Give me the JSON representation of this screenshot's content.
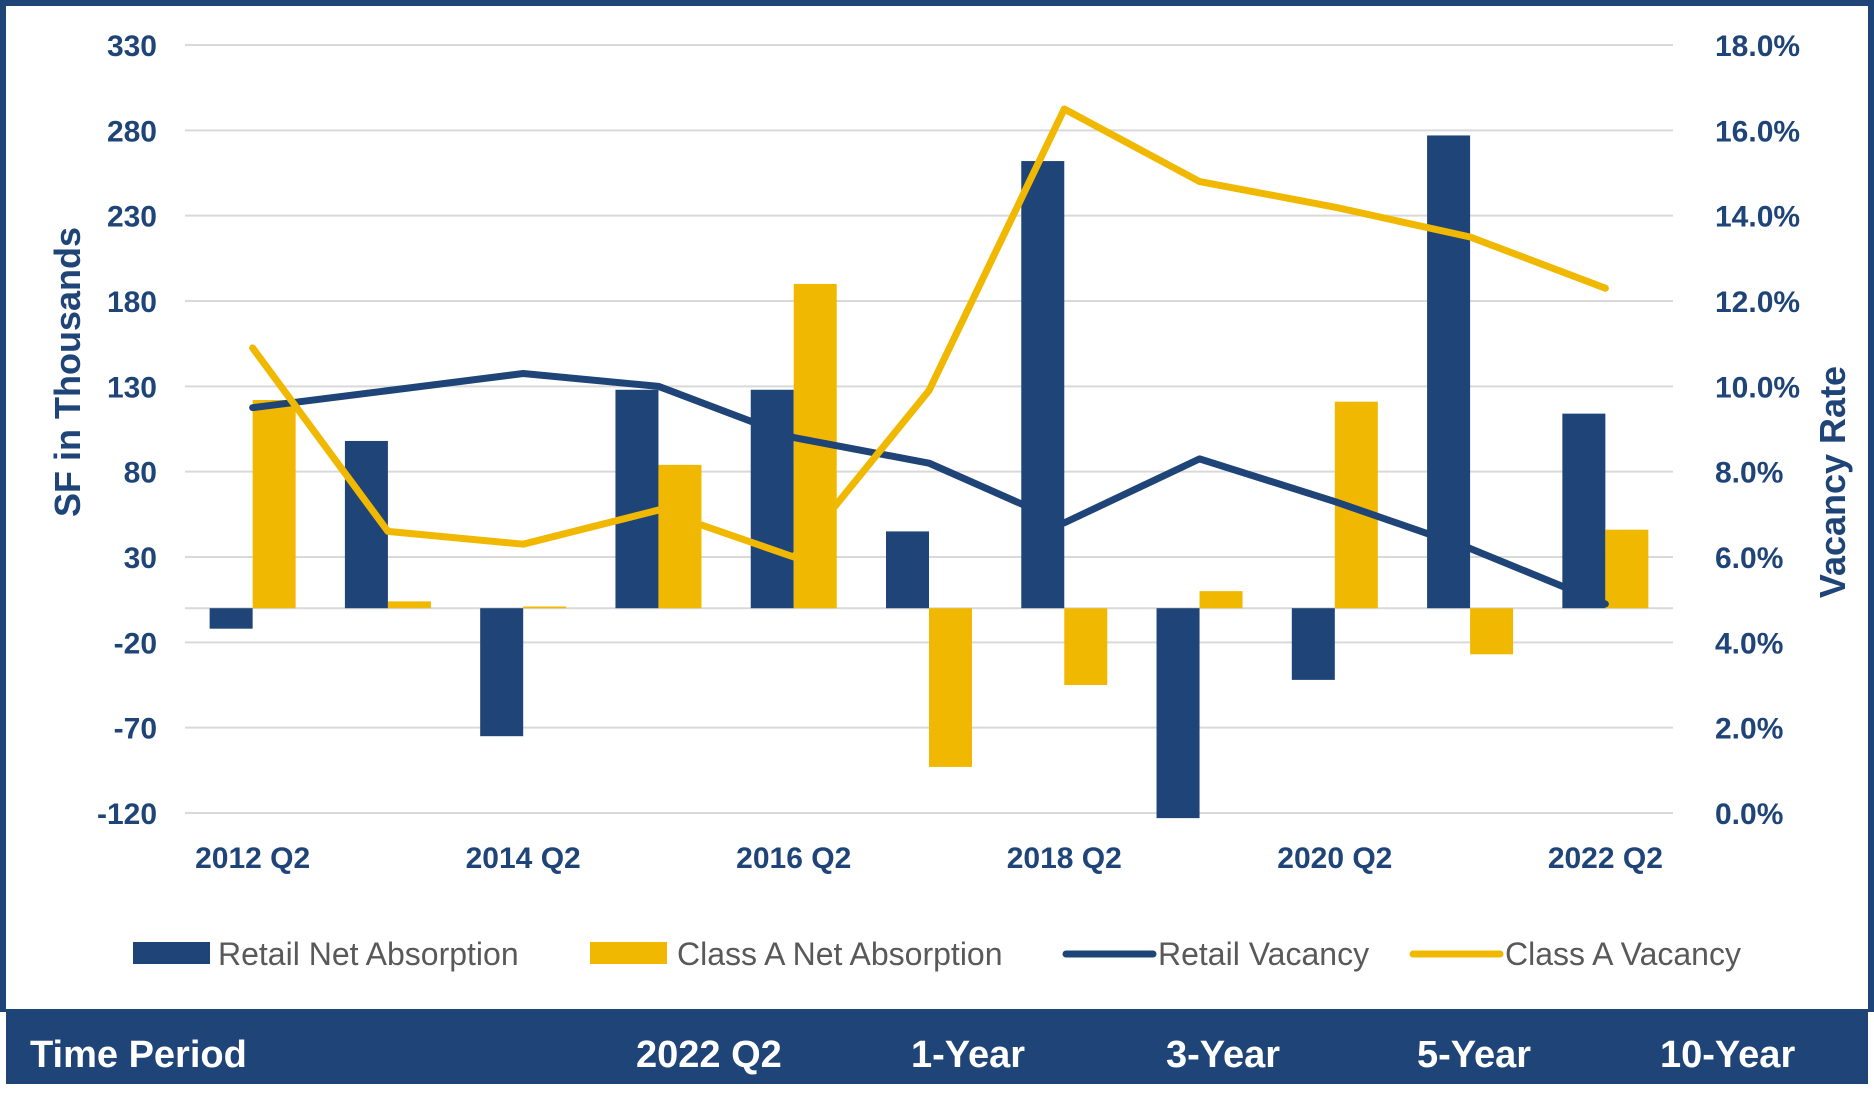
{
  "colors": {
    "navy": "#1f4477",
    "gold": "#f0b800",
    "grid": "#d9d9d9",
    "legend_text": "#595959"
  },
  "chart_data": {
    "type": "bar",
    "categories": [
      "2012 Q2",
      "2013 Q2",
      "2014 Q2",
      "2015 Q2",
      "2016 Q2",
      "2017 Q2",
      "2018 Q2",
      "2019 Q2",
      "2020 Q2",
      "2021 Q2",
      "2022 Q2"
    ],
    "x_tick_labels": [
      "2012 Q2",
      "",
      "2014 Q2",
      "",
      "2016 Q2",
      "",
      "2018 Q2",
      "",
      "2020 Q2",
      "",
      "2022 Q2"
    ],
    "series": [
      {
        "name": "Retail Net Absorption",
        "kind": "bar",
        "axis": "left",
        "color": "#1f4477",
        "values": [
          -12,
          98,
          -75,
          128,
          128,
          45,
          262,
          -123,
          -42,
          277,
          114
        ]
      },
      {
        "name": "Class A Net Absorption",
        "kind": "bar",
        "axis": "left",
        "color": "#f0b800",
        "values": [
          122,
          4,
          1,
          84,
          190,
          -93,
          -45,
          10,
          121,
          -27,
          46
        ]
      },
      {
        "name": "Retail Vacancy",
        "kind": "line",
        "axis": "right",
        "color": "#1f4477",
        "values": [
          9.5,
          9.9,
          10.3,
          10.0,
          8.8,
          8.2,
          6.8,
          8.3,
          7.3,
          6.2,
          4.9
        ]
      },
      {
        "name": "Class A Vacancy",
        "kind": "line",
        "axis": "right",
        "color": "#f0b800",
        "values": [
          10.9,
          6.6,
          6.3,
          7.1,
          6.0,
          9.9,
          16.5,
          14.8,
          14.2,
          13.5,
          12.3
        ]
      }
    ],
    "left_axis": {
      "title": "SF in Thousands",
      "ylim": [
        -120,
        330
      ],
      "ticks": [
        330,
        280,
        230,
        180,
        130,
        80,
        30,
        -20,
        -70,
        -120
      ],
      "tick_labels": [
        "330",
        "280",
        "230",
        "180",
        "130",
        "80",
        "30",
        "-20",
        "-70",
        "-120"
      ]
    },
    "right_axis": {
      "title": "Vacancy Rate",
      "ylim": [
        0,
        18
      ],
      "ticks": [
        18,
        16,
        14,
        12,
        10,
        8,
        6,
        4,
        2,
        0
      ],
      "tick_labels": [
        "18.0%",
        "16.0%",
        "14.0%",
        "12.0%",
        "10.0%",
        "8.0%",
        "6.0%",
        "4.0%",
        "2.0%",
        "0.0%"
      ]
    },
    "legend": {
      "position": "bottom",
      "entries": [
        "Retail Net Absorption",
        "Class A Net Absorption",
        "Retail Vacancy",
        "Class A Vacancy"
      ]
    },
    "grid": true
  },
  "footer": {
    "label": "Time Period",
    "columns": [
      "2022 Q2",
      "1-Year",
      "3-Year",
      "5-Year",
      "10-Year"
    ]
  }
}
